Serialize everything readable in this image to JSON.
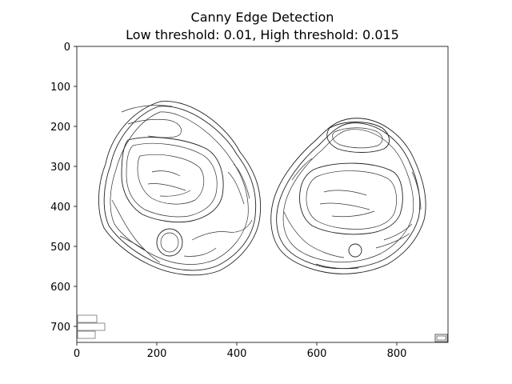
{
  "figure": {
    "title_line1": "Canny Edge Detection",
    "title_line2": "Low threshold: 0.01, High threshold: 0.015",
    "x_ticks": [
      "0",
      "200",
      "400",
      "600",
      "800"
    ],
    "y_ticks": [
      "0",
      "100",
      "200",
      "300",
      "400",
      "500",
      "600",
      "700"
    ],
    "image_width_units": 928,
    "image_height_units": 740
  }
}
